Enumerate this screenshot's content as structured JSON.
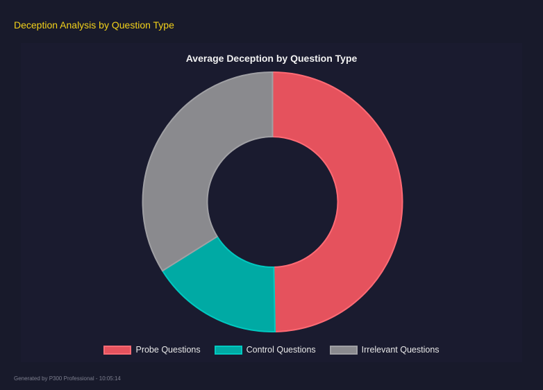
{
  "header": {
    "title": "Deception Analysis by Question Type"
  },
  "footer": {
    "text": "Generated by P300 Professional - 10:05:14"
  },
  "chart_data": {
    "type": "pie",
    "variant": "doughnut",
    "title": "Average Deception by Question Type",
    "categories": [
      "Probe Questions",
      "Control Questions",
      "Irrelevant Questions"
    ],
    "values": [
      49.7,
      16.4,
      33.9
    ],
    "colors": [
      "#e5525d",
      "#00aaa4",
      "#8a8a8e"
    ],
    "border_colors": [
      "#ff6b75",
      "#00c9c0",
      "#a0a0a4"
    ],
    "legend_position": "bottom"
  }
}
